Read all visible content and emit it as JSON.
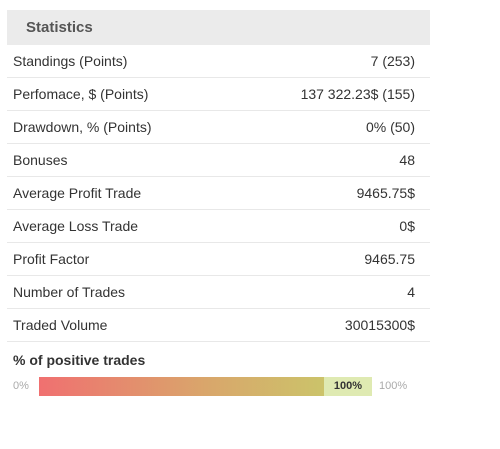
{
  "panel": {
    "title": "Statistics"
  },
  "rows": [
    {
      "label": "Standings (Points)",
      "value": "7 (253)"
    },
    {
      "label": "Perfomace, $ (Points)",
      "value": "137 322.23$ (155)"
    },
    {
      "label": "Drawdown, % (Points)",
      "value": "0% (50)"
    },
    {
      "label": "Bonuses",
      "value": "48"
    },
    {
      "label": "Average Profit Trade",
      "value": "9465.75$"
    },
    {
      "label": "Average Loss Trade",
      "value": "0$"
    },
    {
      "label": "Profit Factor",
      "value": "9465.75"
    },
    {
      "label": "Number of Trades",
      "value": "4"
    },
    {
      "label": "Traded Volume",
      "value": "30015300$"
    }
  ],
  "positive_trades": {
    "title": "% of positive trades",
    "min_label": "0%",
    "max_label": "100%",
    "value_label": "100%",
    "value_percent": 100,
    "gradient_colors": [
      "#f07070",
      "#d9a66b",
      "#c6cf6a"
    ]
  }
}
